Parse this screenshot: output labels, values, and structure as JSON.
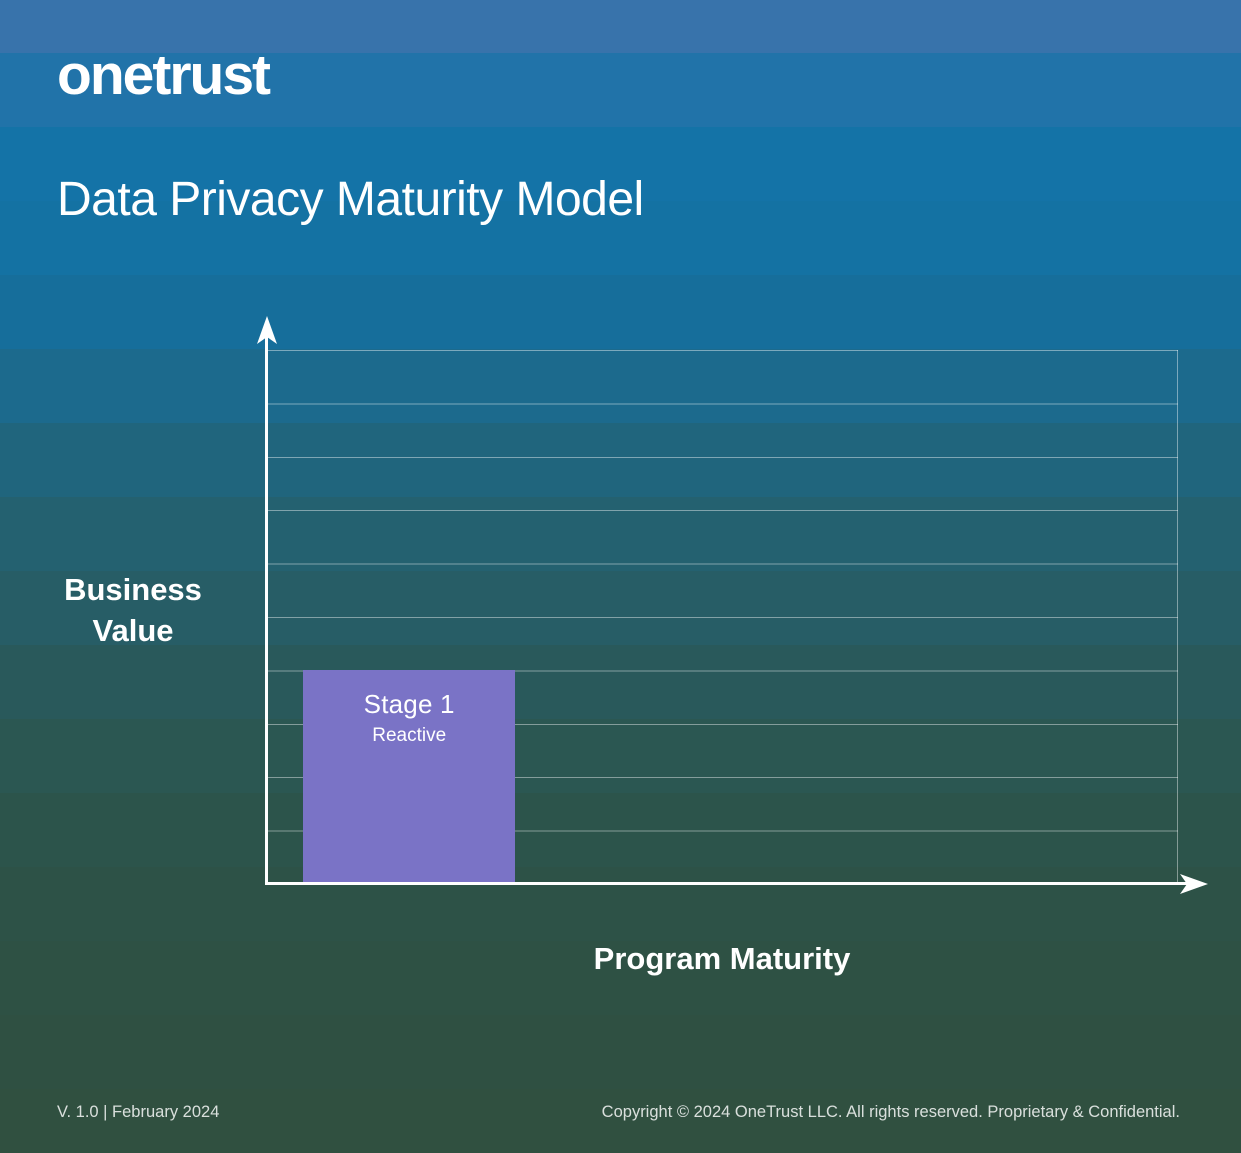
{
  "brand": {
    "logo_text": "onetrust"
  },
  "header": {
    "title": "Data Privacy Maturity Model"
  },
  "chart_data": {
    "type": "bar",
    "title": "Data Privacy Maturity Model",
    "xlabel": "Program Maturity",
    "ylabel": "Business Value",
    "grid_on": true,
    "gridline_rows": 10,
    "ylim_units": [
      0,
      10
    ],
    "axis_color": "#ffffff",
    "gridline_color": "rgba(255,255,255,0.42)",
    "bars": [
      {
        "label": "Stage 1",
        "sublabel": "Reactive",
        "value_units": 4,
        "x_start_frac": 0.041,
        "x_end_frac": 0.273,
        "color": "#7a73c6"
      }
    ]
  },
  "footer": {
    "version": "V. 1.0 | February 2024",
    "copyright": "Copyright © 2024 OneTrust LLC. All rights reserved. Proprietary & Confidential."
  }
}
